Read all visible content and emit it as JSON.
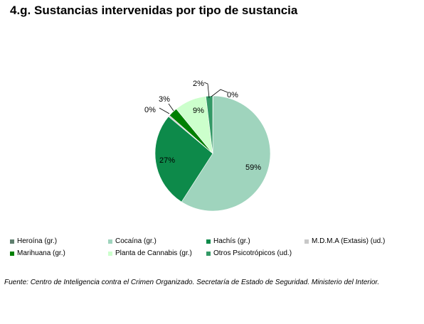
{
  "title": "4.g. Sustancias intervenidas por tipo de sustancia",
  "source": "Fuente: Centro de Inteligencia contra el Crimen Organizado. Secretaría de Estado de Seguridad. Ministerio del Interior.",
  "chart_data": {
    "type": "pie",
    "title": "4.g. Sustancias intervenidas por tipo de sustancia",
    "legend_position": "bottom",
    "slices": [
      {
        "name": "Heroína (gr.)",
        "value": 0.1,
        "label": "0%",
        "color": "#5f7f6e"
      },
      {
        "name": "Cocaína (gr.)",
        "value": 59,
        "label": "59%",
        "color": "#9fd4bd"
      },
      {
        "name": "Hachís (gr.)",
        "value": 27,
        "label": "27%",
        "color": "#0d8a4a"
      },
      {
        "name": "M.D.M.A (Extasis) (ud.)",
        "value": 0.4,
        "label": "0%",
        "color": "#c8c8c8"
      },
      {
        "name": "Marihuana (gr.)",
        "value": 2.6,
        "label": "3%",
        "color": "#008000"
      },
      {
        "name": "Planta de Cannabis (gr.)",
        "value": 9,
        "label": "9%",
        "color": "#ccffcc"
      },
      {
        "name": "Otros Psicotrópicos (ud.)",
        "value": 1.9,
        "label": "2%",
        "color": "#339966"
      }
    ]
  }
}
